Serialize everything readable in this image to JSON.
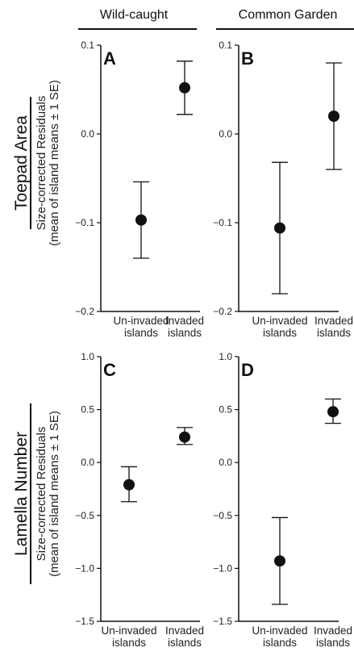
{
  "column_headers": [
    "Wild-caught",
    "Common Garden"
  ],
  "row_labels": [
    {
      "title": "Toepad Area",
      "subtitle_line1": "Size-corrected Residuals",
      "subtitle_line2": "(mean of island means ± 1 SE)"
    },
    {
      "title": "Lamella Number",
      "subtitle_line1": "Size-corrected Residuals",
      "subtitle_line2": "(mean of island means ± 1 SE)"
    }
  ],
  "chart_data": [
    {
      "panel": "A",
      "type": "scatter",
      "categories": [
        [
          "Un-invaded",
          "islands"
        ],
        [
          "Invaded",
          "islands"
        ]
      ],
      "ylim": [
        -0.2,
        0.1
      ],
      "yticks": [
        -0.2,
        -0.1,
        0.0,
        0.1
      ],
      "ytick_labels": [
        "−0.2",
        "−0.1",
        "0.0",
        "0.1"
      ],
      "series": [
        {
          "values": [
            -0.097,
            0.052
          ],
          "se_low": [
            -0.14,
            0.022
          ],
          "se_high": [
            -0.054,
            0.082
          ]
        }
      ]
    },
    {
      "panel": "B",
      "type": "scatter",
      "categories": [
        [
          "Un-invaded",
          "islands"
        ],
        [
          "Invaded",
          "islands"
        ]
      ],
      "ylim": [
        -0.2,
        0.1
      ],
      "yticks": [
        -0.2,
        -0.1,
        0.0,
        0.1
      ],
      "ytick_labels": [
        "−0.2",
        "−0.1",
        "0.0",
        "0.1"
      ],
      "series": [
        {
          "values": [
            -0.106,
            0.02
          ],
          "se_low": [
            -0.18,
            -0.04
          ],
          "se_high": [
            -0.032,
            0.08
          ]
        }
      ]
    },
    {
      "panel": "C",
      "type": "scatter",
      "categories": [
        [
          "Un-invaded",
          "islands"
        ],
        [
          "Invaded",
          "islands"
        ]
      ],
      "ylim": [
        -1.5,
        1.0
      ],
      "yticks": [
        -1.5,
        -1.0,
        -0.5,
        0.0,
        0.5,
        1.0
      ],
      "ytick_labels": [
        "−1.5",
        "−1.0",
        "−0.5",
        "0.0",
        "0.5",
        "1.0"
      ],
      "series": [
        {
          "values": [
            -0.21,
            0.24
          ],
          "se_low": [
            -0.37,
            0.17
          ],
          "se_high": [
            -0.04,
            0.33
          ]
        }
      ]
    },
    {
      "panel": "D",
      "type": "scatter",
      "categories": [
        [
          "Un-invaded",
          "islands"
        ],
        [
          "Invaded",
          "islands"
        ]
      ],
      "ylim": [
        -1.5,
        1.0
      ],
      "yticks": [
        -1.5,
        -1.0,
        -0.5,
        0.0,
        0.5,
        1.0
      ],
      "ytick_labels": [
        "−1.5",
        "−1.0",
        "−0.5",
        "0.0",
        "0.5",
        "1.0"
      ],
      "series": [
        {
          "values": [
            -0.93,
            0.48
          ],
          "se_low": [
            -1.34,
            0.37
          ],
          "se_high": [
            -0.52,
            0.6
          ]
        }
      ]
    }
  ]
}
